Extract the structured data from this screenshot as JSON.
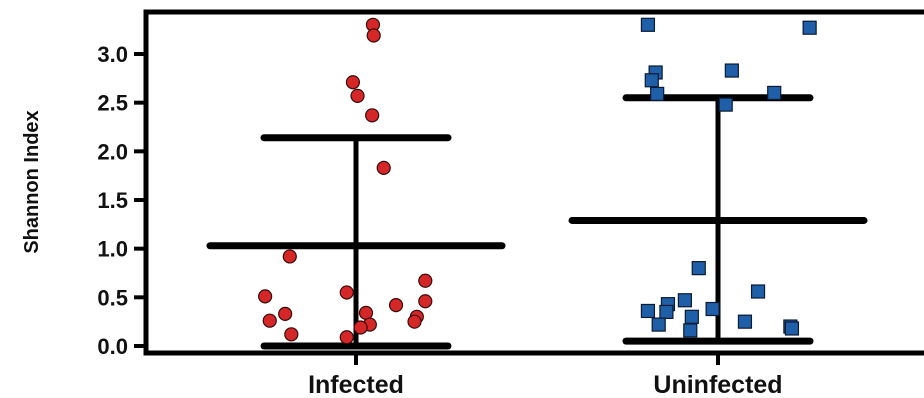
{
  "chart_data": {
    "type": "scatter",
    "ylabel": "Shannon Index",
    "xlabel": "",
    "ylim": [
      0,
      3.35
    ],
    "yticks": [
      "0.0",
      "0.5",
      "1.0",
      "1.5",
      "2.0",
      "2.5",
      "3.0"
    ],
    "categories": [
      "Infected",
      "Uninfected"
    ],
    "series": [
      {
        "category": "Infected",
        "marker": "circle",
        "color": "#d62728",
        "mean": 1.03,
        "sd_upper": 2.14,
        "sd_lower": 0.0,
        "points": [
          {
            "jitter": 0.22,
            "y": 3.3
          },
          {
            "jitter": 0.23,
            "y": 3.19
          },
          {
            "jitter": -0.04,
            "y": 2.71
          },
          {
            "jitter": 0.02,
            "y": 2.57
          },
          {
            "jitter": 0.21,
            "y": 2.37
          },
          {
            "jitter": 0.36,
            "y": 1.83
          },
          {
            "jitter": -0.86,
            "y": 0.92
          },
          {
            "jitter": 0.9,
            "y": 0.67
          },
          {
            "jitter": -1.18,
            "y": 0.51
          },
          {
            "jitter": -0.12,
            "y": 0.55
          },
          {
            "jitter": 0.9,
            "y": 0.46
          },
          {
            "jitter": 0.52,
            "y": 0.42
          },
          {
            "jitter": 0.13,
            "y": 0.34
          },
          {
            "jitter": -0.92,
            "y": 0.33
          },
          {
            "jitter": 0.79,
            "y": 0.3
          },
          {
            "jitter": -1.12,
            "y": 0.26
          },
          {
            "jitter": 0.76,
            "y": 0.25
          },
          {
            "jitter": 0.18,
            "y": 0.22
          },
          {
            "jitter": 0.06,
            "y": 0.19
          },
          {
            "jitter": -0.84,
            "y": 0.12
          },
          {
            "jitter": -0.12,
            "y": 0.09
          }
        ]
      },
      {
        "category": "Uninfected",
        "marker": "square",
        "color": "#1f5fa8",
        "mean": 1.29,
        "sd_upper": 2.55,
        "sd_lower": 0.05,
        "points": [
          {
            "jitter": -0.91,
            "y": 3.3
          },
          {
            "jitter": 1.19,
            "y": 3.27
          },
          {
            "jitter": -0.81,
            "y": 2.81
          },
          {
            "jitter": 0.18,
            "y": 2.83
          },
          {
            "jitter": -0.86,
            "y": 2.73
          },
          {
            "jitter": -0.79,
            "y": 2.59
          },
          {
            "jitter": 0.73,
            "y": 2.6
          },
          {
            "jitter": 0.1,
            "y": 2.48
          },
          {
            "jitter": -0.25,
            "y": 0.8
          },
          {
            "jitter": 0.52,
            "y": 0.56
          },
          {
            "jitter": -0.43,
            "y": 0.47
          },
          {
            "jitter": -0.65,
            "y": 0.43
          },
          {
            "jitter": -0.07,
            "y": 0.38
          },
          {
            "jitter": -0.91,
            "y": 0.36
          },
          {
            "jitter": -0.67,
            "y": 0.35
          },
          {
            "jitter": -0.34,
            "y": 0.3
          },
          {
            "jitter": 0.35,
            "y": 0.25
          },
          {
            "jitter": -0.77,
            "y": 0.22
          },
          {
            "jitter": 0.94,
            "y": 0.2
          },
          {
            "jitter": 0.96,
            "y": 0.18
          },
          {
            "jitter": -0.36,
            "y": 0.16
          }
        ]
      }
    ]
  }
}
